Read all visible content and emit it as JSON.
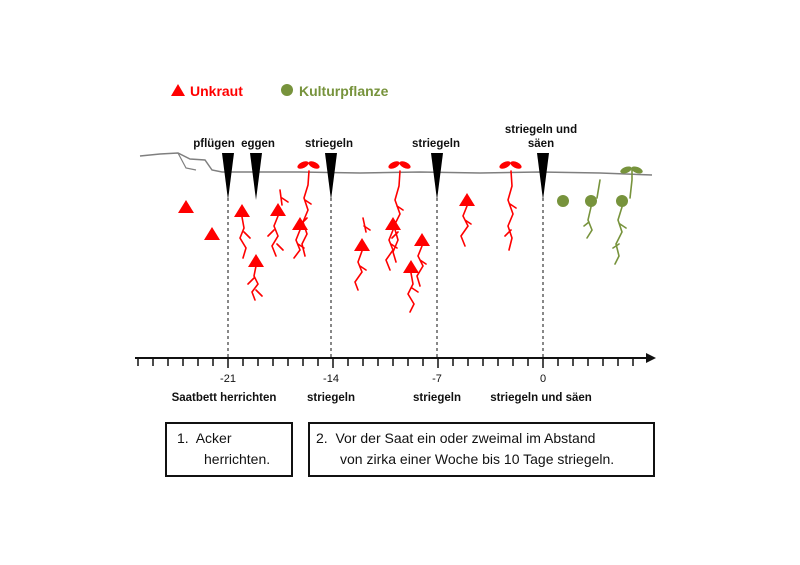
{
  "legend": {
    "weed": {
      "label": "Unkraut",
      "color": "#ff0000",
      "icon": "red-triangle-icon"
    },
    "crop": {
      "label": "Kulturpflanze",
      "color": "#77933c",
      "icon": "green-dot-icon"
    }
  },
  "top_labels": {
    "pfluegen": "pflügen",
    "eggen": "eggen",
    "striegeln_1": "striegeln",
    "striegeln_2": "striegeln",
    "striegeln_saeen_1": "striegeln und",
    "striegeln_saeen_2": "säen"
  },
  "timeline": {
    "ticks": [
      "-21",
      "-14",
      "-7",
      "0"
    ],
    "captions": [
      "Saatbett herrichten",
      "striegeln",
      "striegeln",
      "striegeln und säen"
    ]
  },
  "steps": [
    {
      "number": "1.",
      "line1": "Acker",
      "line2": "herrichten."
    },
    {
      "number": "2.",
      "line1": "Vor der Saat ein oder zweimal im Abstand",
      "line2": "von zirka einer Woche bis 10 Tage striegeln."
    }
  ],
  "colors": {
    "weed": "#ff0000",
    "crop": "#77933c",
    "soil": "#7f7f7f",
    "tool": "#000000"
  }
}
